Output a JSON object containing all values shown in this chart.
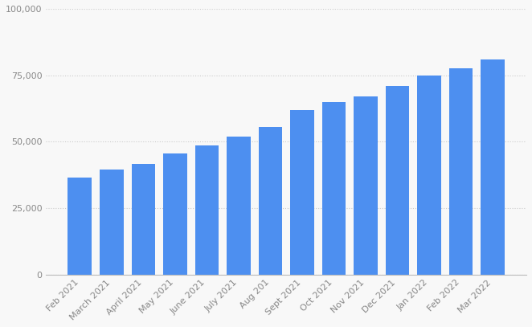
{
  "categories": [
    "Feb 2021",
    "March 2021",
    "April 2021",
    "May 2021",
    "June 2021",
    "July 2021",
    "Aug 201",
    "Sept 2021",
    "Oct 2021",
    "Nov 2021",
    "Dec 2021",
    "Jan 2022",
    "Feb 2022",
    "Mar 2022"
  ],
  "values": [
    36500,
    39500,
    41500,
    45500,
    48500,
    52000,
    55500,
    62000,
    65000,
    67000,
    71000,
    75000,
    77500,
    81000
  ],
  "bar_color": "#4d8ff0",
  "ylim": [
    0,
    100000
  ],
  "yticks": [
    0,
    25000,
    50000,
    75000,
    100000
  ],
  "ytick_labels": [
    "0",
    "25,000",
    "50,000",
    "75,000",
    "100,000"
  ],
  "background_color": "#f8f8f8",
  "grid_color": "#cccccc",
  "tick_label_color": "#888888",
  "tick_label_fontsize": 8.0,
  "bar_width": 0.75
}
